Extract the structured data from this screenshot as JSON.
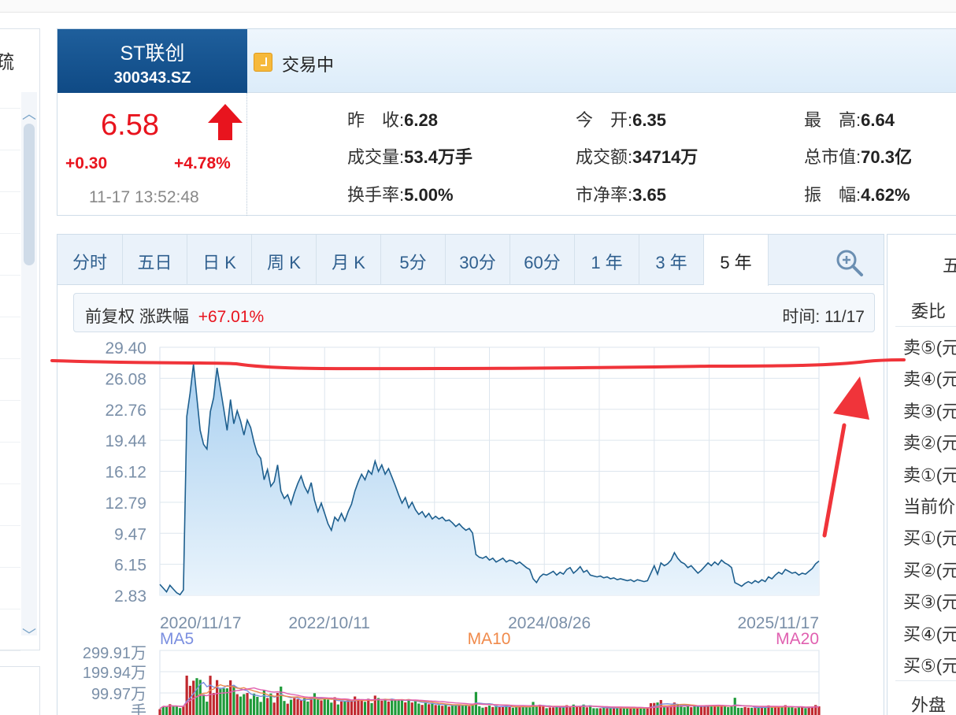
{
  "stock": {
    "name": "ST联创",
    "code": "300343.SZ",
    "status": "交易中",
    "price": "6.58",
    "change": "+0.30",
    "change_pct": "+4.78%",
    "time": "11-17 13:52:48"
  },
  "quotes": [
    {
      "label": "昨　收:",
      "value": "6.28"
    },
    {
      "label": "今　开:",
      "value": "6.35"
    },
    {
      "label": "最　高:",
      "value": "6.64"
    },
    {
      "label": "成交量:",
      "value": "53.4万手"
    },
    {
      "label": "成交额:",
      "value": "34714万"
    },
    {
      "label": "总市值:",
      "value": "70.3亿"
    },
    {
      "label": "换手率:",
      "value": "5.00%"
    },
    {
      "label": "市净率:",
      "value": "3.65"
    },
    {
      "label": "振　幅:",
      "value": "4.62%"
    }
  ],
  "tabs": [
    "分时",
    "五日",
    "日 K",
    "周 K",
    "月 K",
    "5分",
    "30分",
    "60分",
    "1 年",
    "3 年",
    "5 年"
  ],
  "active_tab": "5 年",
  "info": {
    "adjust": "前复权",
    "chg_label": "涨跌幅",
    "chg_value": "+67.01%",
    "time_label": "时间: 11/17"
  },
  "sidebar": {
    "partial_char": "疏"
  },
  "right_panel": {
    "title": "五",
    "ratio": "委比",
    "rows": [
      "卖⑤(元",
      "卖④(元",
      "卖③(元",
      "卖②(元",
      "卖①(元",
      "当前价",
      "买①(元",
      "买②(元",
      "买③(元",
      "买④(元",
      "买⑤(元"
    ],
    "bottom": "外盘"
  },
  "colors": {
    "up": "#e8141e",
    "down": "#1f9b3a",
    "line": "#1e5f8e",
    "ma5": "#7b8fe0",
    "ma10": "#f08a4b",
    "ma20": "#e060b0",
    "annotation": "#f0343a"
  },
  "chart_data": {
    "type": "area",
    "y_ticks": [
      "29.40",
      "26.08",
      "22.76",
      "19.44",
      "16.12",
      "12.79",
      "9.47",
      "6.15",
      "2.83"
    ],
    "ylim": [
      2.83,
      29.4
    ],
    "x_labels": [
      "2020/11/17",
      "2022/10/11",
      "2024/08/26",
      "2025/11/17"
    ],
    "x_range": [
      "2020/11/17",
      "2025/11/17"
    ],
    "series": [
      {
        "date_label_points": {
          "2020/11/17": 0,
          "2022/10/11": 0.257,
          "2024/08/26": 0.591,
          "2025/11/17": 1.0
        },
        "values": [
          4.0,
          3.6,
          3.2,
          3.9,
          3.5,
          3.1,
          2.9,
          3.4,
          22.0,
          24.5,
          27.6,
          24.0,
          20.5,
          19.0,
          18.5,
          22.5,
          24.0,
          27.2,
          25.0,
          22.8,
          20.5,
          23.8,
          21.2,
          22.6,
          21.5,
          20.0,
          21.6,
          20.8,
          19.2,
          18.0,
          17.5,
          15.2,
          16.3,
          14.5,
          15.0,
          16.8,
          14.0,
          13.2,
          13.6,
          12.6,
          13.8,
          14.8,
          15.6,
          14.5,
          13.8,
          14.9,
          13.0,
          11.8,
          12.7,
          11.6,
          10.5,
          9.8,
          11.2,
          10.8,
          11.6,
          10.8,
          11.8,
          12.6,
          14.0,
          15.0,
          15.8,
          15.2,
          16.2,
          15.8,
          17.2,
          16.1,
          16.8,
          15.8,
          16.4,
          15.5,
          14.6,
          13.6,
          12.7,
          13.3,
          12.2,
          12.8,
          12.0,
          11.5,
          11.8,
          11.2,
          11.6,
          11.0,
          11.3,
          11.0,
          11.2,
          10.8,
          10.9,
          10.6,
          10.2,
          10.5,
          10.1,
          9.8,
          10.0,
          9.5,
          7.2,
          6.9,
          6.8,
          7.0,
          6.6,
          6.8,
          6.4,
          6.6,
          6.8,
          6.4,
          6.6,
          6.5,
          6.2,
          6.4,
          6.1,
          5.8,
          5.6,
          4.6,
          4.2,
          4.8,
          5.1,
          5.0,
          5.2,
          5.4,
          5.0,
          5.3,
          5.1,
          5.6,
          5.8,
          5.2,
          5.5,
          5.9,
          5.3,
          5.5,
          5.0,
          4.9,
          4.8,
          4.9,
          4.7,
          4.8,
          4.6,
          4.7,
          4.5,
          4.6,
          4.5,
          4.4,
          4.5,
          4.3,
          4.5,
          4.4,
          4.3,
          4.4,
          5.2,
          6.0,
          5.1,
          6.3,
          6.0,
          6.2,
          6.6,
          7.4,
          6.8,
          6.4,
          6.2,
          5.8,
          6.0,
          5.6,
          5.2,
          5.5,
          5.9,
          6.3,
          6.0,
          6.4,
          6.1,
          6.6,
          6.3,
          6.1,
          5.8,
          4.2,
          4.0,
          3.8,
          4.1,
          4.3,
          4.1,
          4.4,
          4.2,
          4.5,
          4.3,
          4.8,
          4.6,
          5.0,
          5.3,
          5.1,
          5.6,
          5.4,
          5.2,
          5.3,
          5.0,
          5.2,
          5.1,
          5.4,
          5.7,
          6.2,
          6.5
        ]
      }
    ],
    "annotation": "hand-drawn red line at the 2020 high with a red arrow pointing up from the latest price"
  },
  "volume_chart": {
    "legend": [
      "MA5",
      "MA10",
      "MA20"
    ],
    "y_ticks": [
      "299.91万",
      "199.94万",
      "99.97万",
      "手"
    ]
  }
}
